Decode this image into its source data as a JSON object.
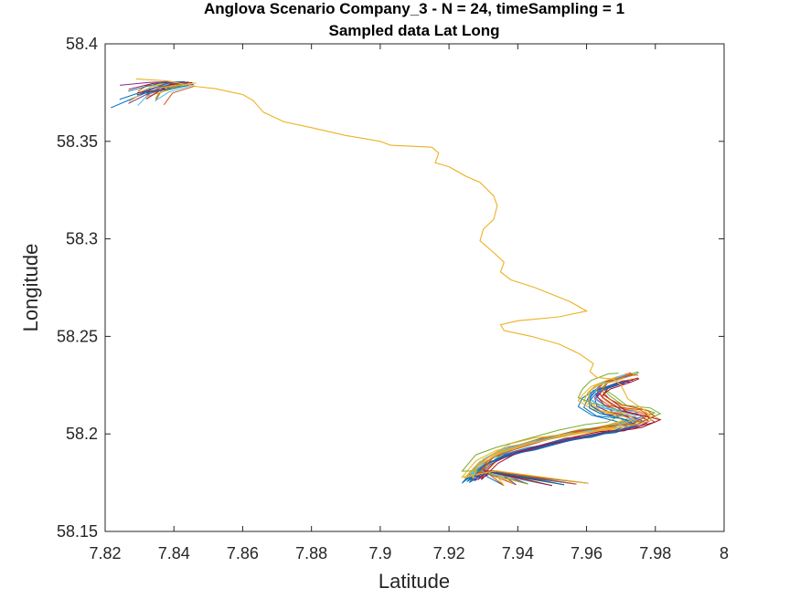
{
  "chart_data": {
    "type": "line",
    "title": "Anglova Scenario Company_3 - N = 24, timeSampling = 1",
    "subtitle": "Sampled data Lat Long",
    "xlabel": "Latitude",
    "ylabel": "Longitude",
    "xlim": [
      7.82,
      8.0
    ],
    "ylim": [
      58.15,
      58.4
    ],
    "xticks": [
      "7.82",
      "7.84",
      "7.86",
      "7.88",
      "7.9",
      "7.92",
      "7.94",
      "7.96",
      "7.98",
      "8"
    ],
    "yticks": [
      "58.15",
      "58.2",
      "58.25",
      "58.3",
      "58.35",
      "58.4"
    ],
    "grid": false,
    "series_count": 24,
    "colors": [
      "#0072BD",
      "#D95319",
      "#EDB120",
      "#7E2F8E",
      "#77AC30",
      "#4DBEEE",
      "#A2142F"
    ],
    "main_track": [
      [
        7.829,
        58.382
      ],
      [
        7.838,
        58.381
      ],
      [
        7.847,
        58.378
      ],
      [
        7.852,
        58.377
      ],
      [
        7.86,
        58.374
      ],
      [
        7.863,
        58.371
      ],
      [
        7.866,
        58.365
      ],
      [
        7.872,
        58.36
      ],
      [
        7.88,
        58.357
      ],
      [
        7.89,
        58.353
      ],
      [
        7.9,
        58.35
      ],
      [
        7.903,
        58.348
      ],
      [
        7.915,
        58.347
      ],
      [
        7.917,
        58.344
      ],
      [
        7.916,
        58.339
      ],
      [
        7.92,
        58.337
      ],
      [
        7.925,
        58.332
      ],
      [
        7.929,
        58.329
      ],
      [
        7.933,
        58.322
      ],
      [
        7.934,
        58.317
      ],
      [
        7.933,
        58.31
      ],
      [
        7.93,
        58.305
      ],
      [
        7.929,
        58.299
      ],
      [
        7.933,
        58.293
      ],
      [
        7.936,
        58.288
      ],
      [
        7.935,
        58.283
      ],
      [
        7.938,
        58.279
      ],
      [
        7.945,
        58.275
      ],
      [
        7.955,
        58.268
      ],
      [
        7.96,
        58.263
      ],
      [
        7.952,
        58.26
      ],
      [
        7.94,
        58.258
      ],
      [
        7.935,
        58.256
      ],
      [
        7.936,
        58.253
      ],
      [
        7.944,
        58.25
      ],
      [
        7.952,
        58.246
      ],
      [
        7.958,
        58.241
      ],
      [
        7.962,
        58.236
      ],
      [
        7.961,
        58.232
      ],
      [
        7.963,
        58.229
      ],
      [
        7.968,
        58.228
      ],
      [
        7.97,
        58.225
      ],
      [
        7.972,
        58.218
      ],
      [
        7.977,
        58.212
      ],
      [
        7.979,
        58.207
      ],
      [
        7.975,
        58.205
      ],
      [
        7.965,
        58.202
      ],
      [
        7.955,
        58.2
      ],
      [
        7.945,
        58.198
      ],
      [
        7.938,
        58.195
      ],
      [
        7.933,
        58.19
      ],
      [
        7.928,
        58.183
      ],
      [
        7.927,
        58.177
      ]
    ],
    "main_track_color": "#EDB120"
  }
}
